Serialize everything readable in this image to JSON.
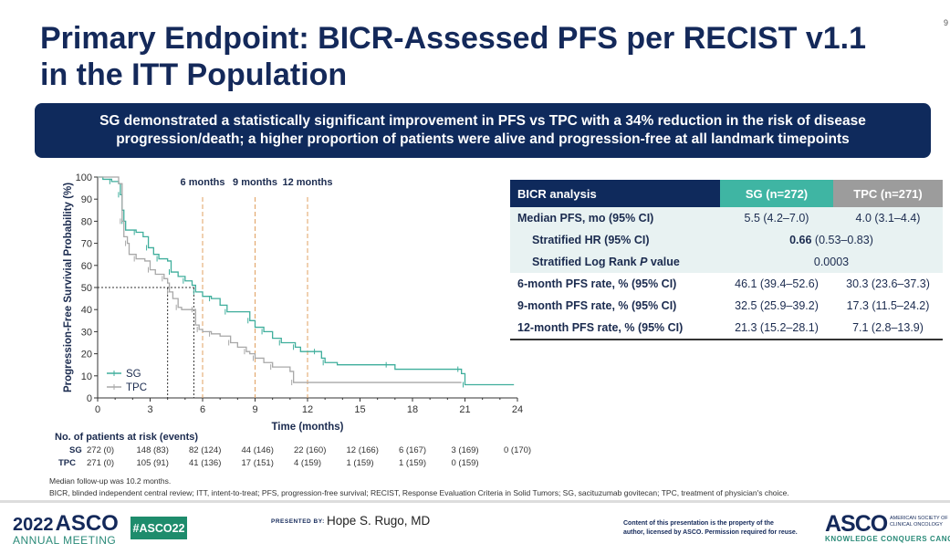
{
  "page_number": "9",
  "title_line1": "Primary Endpoint: BICR-Assessed PFS per RECIST v1.1",
  "title_line2": "in the ITT Population",
  "banner": "SG demonstrated a statistically significant improvement in PFS vs TPC with a 34% reduction in the risk of disease progression/death; a higher proportion of patients were alive and progression-free at all landmark timepoints",
  "chart_data": {
    "type": "line",
    "title": "",
    "xlabel": "Time (months)",
    "ylabel": "Progression-Free Survivial Probability (%)",
    "xlim": [
      0,
      24
    ],
    "ylim": [
      0,
      100
    ],
    "xticks": [
      0,
      3,
      6,
      9,
      12,
      15,
      18,
      21,
      24
    ],
    "yticks": [
      0,
      10,
      20,
      30,
      40,
      50,
      60,
      70,
      80,
      90,
      100
    ],
    "landmarks": [
      {
        "x": 6,
        "label": "6 months"
      },
      {
        "x": 9,
        "label": "9 months"
      },
      {
        "x": 12,
        "label": "12 months"
      }
    ],
    "median_reference": {
      "y": 50,
      "medians": [
        4.0,
        5.5
      ]
    },
    "series": [
      {
        "name": "SG",
        "color": "#3fae9c",
        "step": [
          [
            0,
            100
          ],
          [
            0.3,
            99
          ],
          [
            0.8,
            98
          ],
          [
            1.2,
            97
          ],
          [
            1.3,
            92
          ],
          [
            1.4,
            85
          ],
          [
            1.5,
            80
          ],
          [
            1.6,
            76
          ],
          [
            2.2,
            75
          ],
          [
            2.6,
            73
          ],
          [
            2.9,
            68
          ],
          [
            3.2,
            65
          ],
          [
            3.5,
            63
          ],
          [
            4.0,
            62
          ],
          [
            4.2,
            57
          ],
          [
            4.6,
            55
          ],
          [
            5.0,
            53
          ],
          [
            5.4,
            51
          ],
          [
            5.6,
            48
          ],
          [
            6.0,
            46
          ],
          [
            6.5,
            45
          ],
          [
            7.0,
            42
          ],
          [
            7.4,
            39
          ],
          [
            8.3,
            39
          ],
          [
            8.7,
            35
          ],
          [
            9.0,
            32
          ],
          [
            9.5,
            30
          ],
          [
            10.0,
            27
          ],
          [
            10.5,
            25
          ],
          [
            11.0,
            25
          ],
          [
            11.3,
            23
          ],
          [
            11.6,
            21
          ],
          [
            12.5,
            21
          ],
          [
            12.8,
            18
          ],
          [
            13.0,
            16
          ],
          [
            13.7,
            15
          ],
          [
            16.6,
            15
          ],
          [
            17.0,
            13
          ],
          [
            20.7,
            13
          ],
          [
            20.8,
            11
          ],
          [
            21.0,
            6
          ],
          [
            23.8,
            6
          ]
        ]
      },
      {
        "name": "TPC",
        "color": "#a8a8a8",
        "step": [
          [
            0,
            100
          ],
          [
            1.2,
            97
          ],
          [
            1.4,
            80
          ],
          [
            1.5,
            73
          ],
          [
            1.7,
            70
          ],
          [
            1.8,
            65
          ],
          [
            2.2,
            63
          ],
          [
            2.7,
            62
          ],
          [
            3.0,
            58
          ],
          [
            3.3,
            56
          ],
          [
            3.8,
            54
          ],
          [
            4.0,
            52
          ],
          [
            4.1,
            48
          ],
          [
            4.3,
            45
          ],
          [
            4.6,
            41
          ],
          [
            4.8,
            40
          ],
          [
            5.5,
            40
          ],
          [
            5.6,
            33
          ],
          [
            5.8,
            31
          ],
          [
            6.0,
            30
          ],
          [
            6.5,
            29
          ],
          [
            7.0,
            28
          ],
          [
            7.6,
            25
          ],
          [
            8.0,
            23
          ],
          [
            8.5,
            21
          ],
          [
            8.7,
            20
          ],
          [
            9.0,
            18
          ],
          [
            9.5,
            16
          ],
          [
            10.0,
            14
          ],
          [
            11.0,
            12
          ],
          [
            11.2,
            7
          ],
          [
            20.8,
            7
          ]
        ]
      }
    ],
    "legend": "bottom-left"
  },
  "risk_table": {
    "title": "No. of patients at risk (events)",
    "months": [
      0,
      3,
      6,
      9,
      12,
      15,
      18,
      21,
      24
    ],
    "rows": [
      {
        "label": "SG",
        "values": [
          "272 (0)",
          "148 (83)",
          "82 (124)",
          "44 (146)",
          "22 (160)",
          "12 (166)",
          "6 (167)",
          "3 (169)",
          "0 (170)"
        ]
      },
      {
        "label": "TPC",
        "values": [
          "271 (0)",
          "105 (91)",
          "41 (136)",
          "17 (151)",
          "4 (159)",
          "1 (159)",
          "1 (159)",
          "0 (159)"
        ]
      }
    ]
  },
  "table": {
    "header": [
      "BICR analysis",
      "SG (n=272)",
      "TPC (n=271)"
    ],
    "median": {
      "label": "Median PFS, mo (95% CI)",
      "sg": "5.5 (4.2–7.0)",
      "tpc": "4.0 (3.1–4.4)"
    },
    "hr": {
      "label": "Stratified HR (95% CI)",
      "value_bold": "0.66",
      "value_rest": " (0.53–0.83)"
    },
    "pval": {
      "label_pre": "Stratified Log Rank ",
      "label_italic": "P",
      "label_post": " value",
      "value": "0.0003"
    },
    "rates": [
      {
        "label": "6-month PFS rate, % (95% CI)",
        "sg": "46.1 (39.4–52.6)",
        "tpc": "30.3 (23.6–37.3)"
      },
      {
        "label": "9-month PFS rate, % (95% CI)",
        "sg": "32.5 (25.9–39.2)",
        "tpc": "17.3 (11.5–24.2)"
      },
      {
        "label": "12-month PFS rate, % (95% CI)",
        "sg": "21.3 (15.2–28.1)",
        "tpc": "7.1 (2.8–13.9)"
      }
    ]
  },
  "footnotes": [
    "Median follow-up was 10.2 months.",
    "BICR, blinded independent central review; ITT, intent-to-treat; PFS, progression-free survival; RECIST, Response Evaluation Criteria in Solid Tumors; SG, sacituzumab govitecan; TPC, treatment of physician's choice."
  ],
  "footer": {
    "meeting_year": "2022",
    "meeting_brand": "ASCO",
    "meeting_name": "ANNUAL MEETING",
    "hashtag": "#ASCO22",
    "presented_by_label": "PRESENTED BY:",
    "presenter": "Hope S. Rugo, MD",
    "copyright": [
      "Content of this presentation is the property of the",
      "author, licensed by ASCO. Permission required for reuse."
    ],
    "asco_logo": "ASCO",
    "asco_society": [
      "AMERICAN SOCIETY OF",
      "CLINICAL ONCOLOGY"
    ],
    "asco_tagline": "KNOWLEDGE CONQUERS CANCER"
  }
}
